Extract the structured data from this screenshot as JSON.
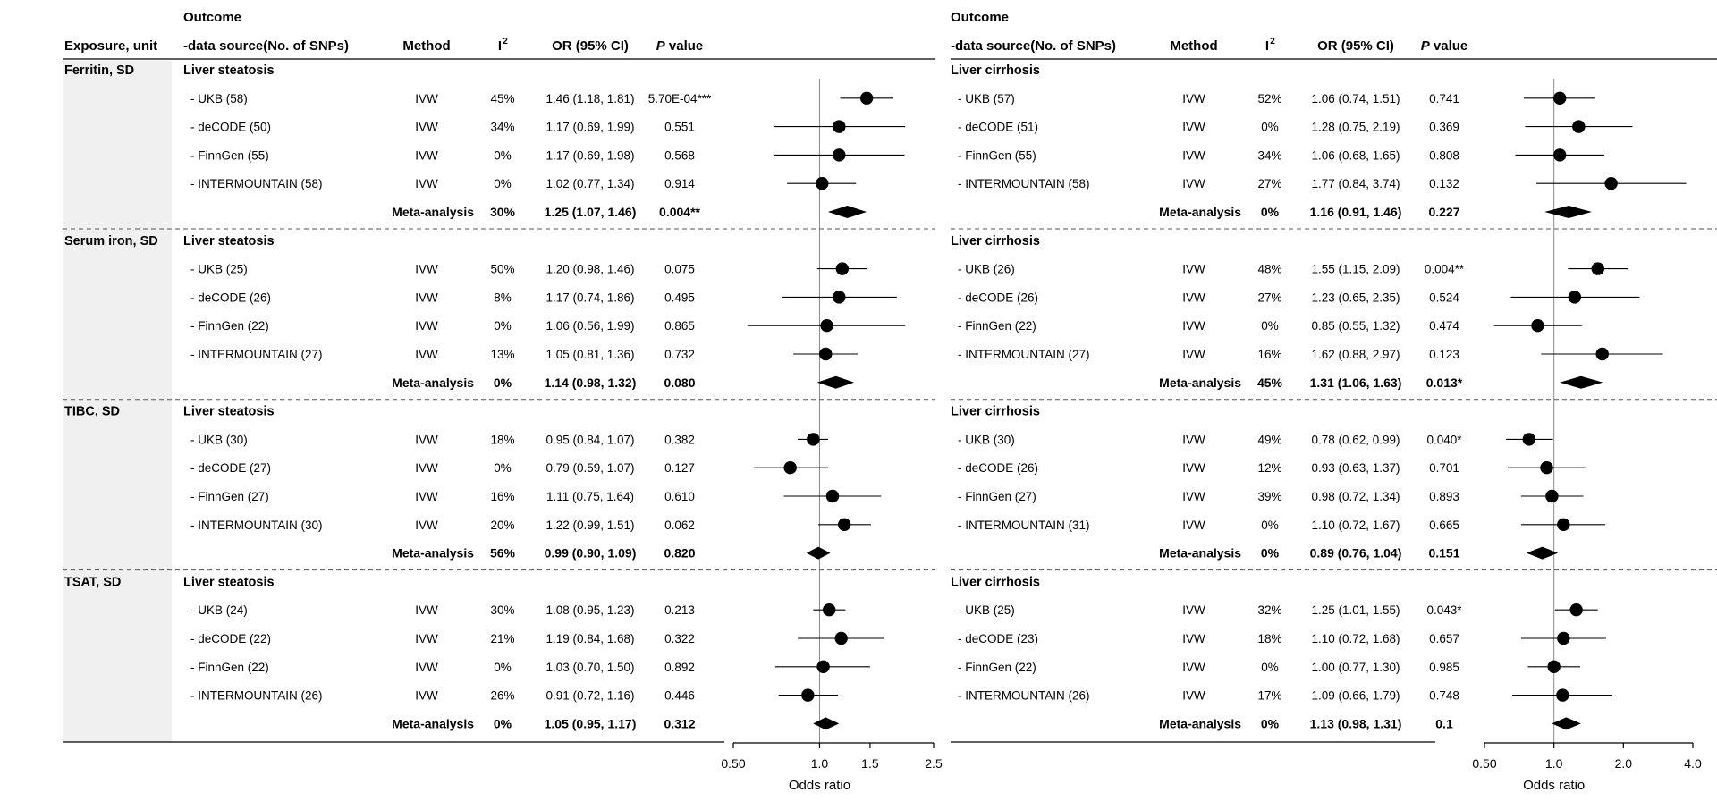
{
  "chart_data": {
    "type": "forest",
    "panels": [
      {
        "id": "steatosis",
        "header": {
          "outcome_top": "Outcome",
          "exposure": "Exposure, unit",
          "outcome": "-data source(No. of SNPs)",
          "method": "Method",
          "i2": "I",
          "i2_sup": "2",
          "or": "OR (95% CI)",
          "p": "P",
          "p_suffix": " value"
        },
        "axis": {
          "scale": "log",
          "xlim": [
            0.5,
            2.5
          ],
          "ref": 1.0,
          "ticks": [
            0.5,
            1.0,
            1.5,
            2.5
          ],
          "tick_labels": [
            "0.50",
            "1.0",
            "1.5",
            "2.5"
          ],
          "xlabel": "Odds ratio"
        },
        "groups": [
          {
            "exposure": "Ferritin, SD",
            "outcome": "Liver steatosis",
            "rows": [
              {
                "label": "- UKB (58)",
                "method": "IVW",
                "i2": "45%",
                "or_text": "1.46 (1.18, 1.81)",
                "p": "5.70E-04***",
                "or": 1.46,
                "lo": 1.18,
                "hi": 1.81
              },
              {
                "label": "- deCODE (50)",
                "method": "IVW",
                "i2": "34%",
                "or_text": "1.17 (0.69, 1.99)",
                "p": "0.551",
                "or": 1.17,
                "lo": 0.69,
                "hi": 1.99
              },
              {
                "label": "- FinnGen (55)",
                "method": "IVW",
                "i2": "0%",
                "or_text": "1.17 (0.69, 1.98)",
                "p": "0.568",
                "or": 1.17,
                "lo": 0.69,
                "hi": 1.98
              },
              {
                "label": "- INTERMOUNTAIN (58)",
                "method": "IVW",
                "i2": "0%",
                "or_text": "1.02 (0.77, 1.34)",
                "p": "0.914",
                "or": 1.02,
                "lo": 0.77,
                "hi": 1.34
              }
            ],
            "meta": {
              "label": "Meta-analysis",
              "i2": "30%",
              "or_text": "1.25 (1.07, 1.46)",
              "p": "0.004**",
              "or": 1.25,
              "lo": 1.07,
              "hi": 1.46
            }
          },
          {
            "exposure": "Serum iron, SD",
            "outcome": "Liver steatosis",
            "rows": [
              {
                "label": "- UKB (25)",
                "method": "IVW",
                "i2": "50%",
                "or_text": "1.20 (0.98, 1.46)",
                "p": "0.075",
                "or": 1.2,
                "lo": 0.98,
                "hi": 1.46
              },
              {
                "label": "- deCODE (26)",
                "method": "IVW",
                "i2": "8%",
                "or_text": "1.17 (0.74, 1.86)",
                "p": "0.495",
                "or": 1.17,
                "lo": 0.74,
                "hi": 1.86
              },
              {
                "label": "- FinnGen (22)",
                "method": "IVW",
                "i2": "0%",
                "or_text": "1.06 (0.56, 1.99)",
                "p": "0.865",
                "or": 1.06,
                "lo": 0.56,
                "hi": 1.99
              },
              {
                "label": "- INTERMOUNTAIN (27)",
                "method": "IVW",
                "i2": "13%",
                "or_text": "1.05 (0.81, 1.36)",
                "p": "0.732",
                "or": 1.05,
                "lo": 0.81,
                "hi": 1.36
              }
            ],
            "meta": {
              "label": "Meta-analysis",
              "i2": "0%",
              "or_text": "1.14 (0.98, 1.32)",
              "p": "0.080",
              "or": 1.14,
              "lo": 0.98,
              "hi": 1.32
            }
          },
          {
            "exposure": "TIBC, SD",
            "outcome": "Liver steatosis",
            "rows": [
              {
                "label": "- UKB (30)",
                "method": "IVW",
                "i2": "18%",
                "or_text": "0.95 (0.84, 1.07)",
                "p": "0.382",
                "or": 0.95,
                "lo": 0.84,
                "hi": 1.07
              },
              {
                "label": "- deCODE (27)",
                "method": "IVW",
                "i2": "0%",
                "or_text": "0.79 (0.59, 1.07)",
                "p": "0.127",
                "or": 0.79,
                "lo": 0.59,
                "hi": 1.07
              },
              {
                "label": "- FinnGen (27)",
                "method": "IVW",
                "i2": "16%",
                "or_text": "1.11 (0.75, 1.64)",
                "p": "0.610",
                "or": 1.11,
                "lo": 0.75,
                "hi": 1.64
              },
              {
                "label": "- INTERMOUNTAIN (30)",
                "method": "IVW",
                "i2": "20%",
                "or_text": "1.22 (0.99, 1.51)",
                "p": "0.062",
                "or": 1.22,
                "lo": 0.99,
                "hi": 1.51
              }
            ],
            "meta": {
              "label": "Meta-analysis",
              "i2": "56%",
              "or_text": "0.99 (0.90, 1.09)",
              "p": "0.820",
              "or": 0.99,
              "lo": 0.9,
              "hi": 1.09
            }
          },
          {
            "exposure": "TSAT, SD",
            "outcome": "Liver steatosis",
            "rows": [
              {
                "label": "- UKB (24)",
                "method": "IVW",
                "i2": "30%",
                "or_text": "1.08 (0.95, 1.23)",
                "p": "0.213",
                "or": 1.08,
                "lo": 0.95,
                "hi": 1.23
              },
              {
                "label": "- deCODE (22)",
                "method": "IVW",
                "i2": "21%",
                "or_text": "1.19 (0.84, 1.68)",
                "p": "0.322",
                "or": 1.19,
                "lo": 0.84,
                "hi": 1.68
              },
              {
                "label": "- FinnGen (22)",
                "method": "IVW",
                "i2": "0%",
                "or_text": "1.03 (0.70, 1.50)",
                "p": "0.892",
                "or": 1.03,
                "lo": 0.7,
                "hi": 1.5
              },
              {
                "label": "- INTERMOUNTAIN (26)",
                "method": "IVW",
                "i2": "26%",
                "or_text": "0.91 (0.72, 1.16)",
                "p": "0.446",
                "or": 0.91,
                "lo": 0.72,
                "hi": 1.16
              }
            ],
            "meta": {
              "label": "Meta-analysis",
              "i2": "0%",
              "or_text": "1.05 (0.95, 1.17)",
              "p": "0.312",
              "or": 1.05,
              "lo": 0.95,
              "hi": 1.17
            }
          }
        ]
      },
      {
        "id": "cirrhosis",
        "header": {
          "outcome_top": "Outcome",
          "outcome": "-data source(No. of SNPs)",
          "method": "Method",
          "i2": "I",
          "i2_sup": "2",
          "or": "OR (95% CI)",
          "p": "P",
          "p_suffix": " value"
        },
        "axis": {
          "scale": "log",
          "xlim": [
            0.5,
            4.0
          ],
          "ref": 1.0,
          "ticks": [
            0.5,
            1.0,
            2.0,
            4.0
          ],
          "tick_labels": [
            "0.50",
            "1.0",
            "2.0",
            "4.0"
          ],
          "xlabel": "Odds ratio"
        },
        "groups": [
          {
            "outcome": "Liver cirrhosis",
            "rows": [
              {
                "label": "- UKB (57)",
                "method": "IVW",
                "i2": "52%",
                "or_text": "1.06 (0.74, 1.51)",
                "p": "0.741",
                "or": 1.06,
                "lo": 0.74,
                "hi": 1.51
              },
              {
                "label": "- deCODE (51)",
                "method": "IVW",
                "i2": "0%",
                "or_text": "1.28 (0.75, 2.19)",
                "p": "0.369",
                "or": 1.28,
                "lo": 0.75,
                "hi": 2.19
              },
              {
                "label": "- FinnGen (55)",
                "method": "IVW",
                "i2": "34%",
                "or_text": "1.06 (0.68, 1.65)",
                "p": "0.808",
                "or": 1.06,
                "lo": 0.68,
                "hi": 1.65
              },
              {
                "label": "- INTERMOUNTAIN (58)",
                "method": "IVW",
                "i2": "27%",
                "or_text": "1.77 (0.84, 3.74)",
                "p": "0.132",
                "or": 1.77,
                "lo": 0.84,
                "hi": 3.74
              }
            ],
            "meta": {
              "label": "Meta-analysis",
              "i2": "0%",
              "or_text": "1.16 (0.91, 1.46)",
              "p": "0.227",
              "or": 1.16,
              "lo": 0.91,
              "hi": 1.46
            }
          },
          {
            "outcome": "Liver cirrhosis",
            "rows": [
              {
                "label": "- UKB (26)",
                "method": "IVW",
                "i2": "48%",
                "or_text": "1.55 (1.15, 2.09)",
                "p": "0.004**",
                "or": 1.55,
                "lo": 1.15,
                "hi": 2.09
              },
              {
                "label": "- deCODE (26)",
                "method": "IVW",
                "i2": "27%",
                "or_text": "1.23 (0.65, 2.35)",
                "p": "0.524",
                "or": 1.23,
                "lo": 0.65,
                "hi": 2.35
              },
              {
                "label": "- FinnGen (22)",
                "method": "IVW",
                "i2": "0%",
                "or_text": "0.85 (0.55, 1.32)",
                "p": "0.474",
                "or": 0.85,
                "lo": 0.55,
                "hi": 1.32
              },
              {
                "label": "- INTERMOUNTAIN (27)",
                "method": "IVW",
                "i2": "16%",
                "or_text": "1.62 (0.88, 2.97)",
                "p": "0.123",
                "or": 1.62,
                "lo": 0.88,
                "hi": 2.97
              }
            ],
            "meta": {
              "label": "Meta-analysis",
              "i2": "45%",
              "or_text": "1.31 (1.06, 1.63)",
              "p": "0.013*",
              "or": 1.31,
              "lo": 1.06,
              "hi": 1.63
            }
          },
          {
            "outcome": "Liver cirrhosis",
            "rows": [
              {
                "label": "- UKB (30)",
                "method": "IVW",
                "i2": "49%",
                "or_text": "0.78 (0.62, 0.99)",
                "p": "0.040*",
                "or": 0.78,
                "lo": 0.62,
                "hi": 0.99
              },
              {
                "label": "- deCODE (26)",
                "method": "IVW",
                "i2": "12%",
                "or_text": "0.93 (0.63, 1.37)",
                "p": "0.701",
                "or": 0.93,
                "lo": 0.63,
                "hi": 1.37
              },
              {
                "label": "- FinnGen (27)",
                "method": "IVW",
                "i2": "39%",
                "or_text": "0.98 (0.72, 1.34)",
                "p": "0.893",
                "or": 0.98,
                "lo": 0.72,
                "hi": 1.34
              },
              {
                "label": "- INTERMOUNTAIN (31)",
                "method": "IVW",
                "i2": "0%",
                "or_text": "1.10 (0.72, 1.67)",
                "p": "0.665",
                "or": 1.1,
                "lo": 0.72,
                "hi": 1.67
              }
            ],
            "meta": {
              "label": "Meta-analysis",
              "i2": "0%",
              "or_text": "0.89 (0.76, 1.04)",
              "p": "0.151",
              "or": 0.89,
              "lo": 0.76,
              "hi": 1.04
            }
          },
          {
            "outcome": "Liver cirrhosis",
            "rows": [
              {
                "label": "- UKB (25)",
                "method": "IVW",
                "i2": "32%",
                "or_text": "1.25 (1.01, 1.55)",
                "p": "0.043*",
                "or": 1.25,
                "lo": 1.01,
                "hi": 1.55
              },
              {
                "label": "- deCODE (23)",
                "method": "IVW",
                "i2": "18%",
                "or_text": "1.10 (0.72, 1.68)",
                "p": "0.657",
                "or": 1.1,
                "lo": 0.72,
                "hi": 1.68
              },
              {
                "label": "- FinnGen (22)",
                "method": "IVW",
                "i2": "0%",
                "or_text": "1.00 (0.77, 1.30)",
                "p": "0.985",
                "or": 1.0,
                "lo": 0.77,
                "hi": 1.3
              },
              {
                "label": "- INTERMOUNTAIN (26)",
                "method": "IVW",
                "i2": "17%",
                "or_text": "1.09 (0.66, 1.79)",
                "p": "0.748",
                "or": 1.09,
                "lo": 0.66,
                "hi": 1.79
              }
            ],
            "meta": {
              "label": "Meta-analysis",
              "i2": "0%",
              "or_text": "1.13 (0.98, 1.31)",
              "p": "0.1",
              "or": 1.13,
              "lo": 0.98,
              "hi": 1.31
            }
          }
        ]
      }
    ]
  }
}
